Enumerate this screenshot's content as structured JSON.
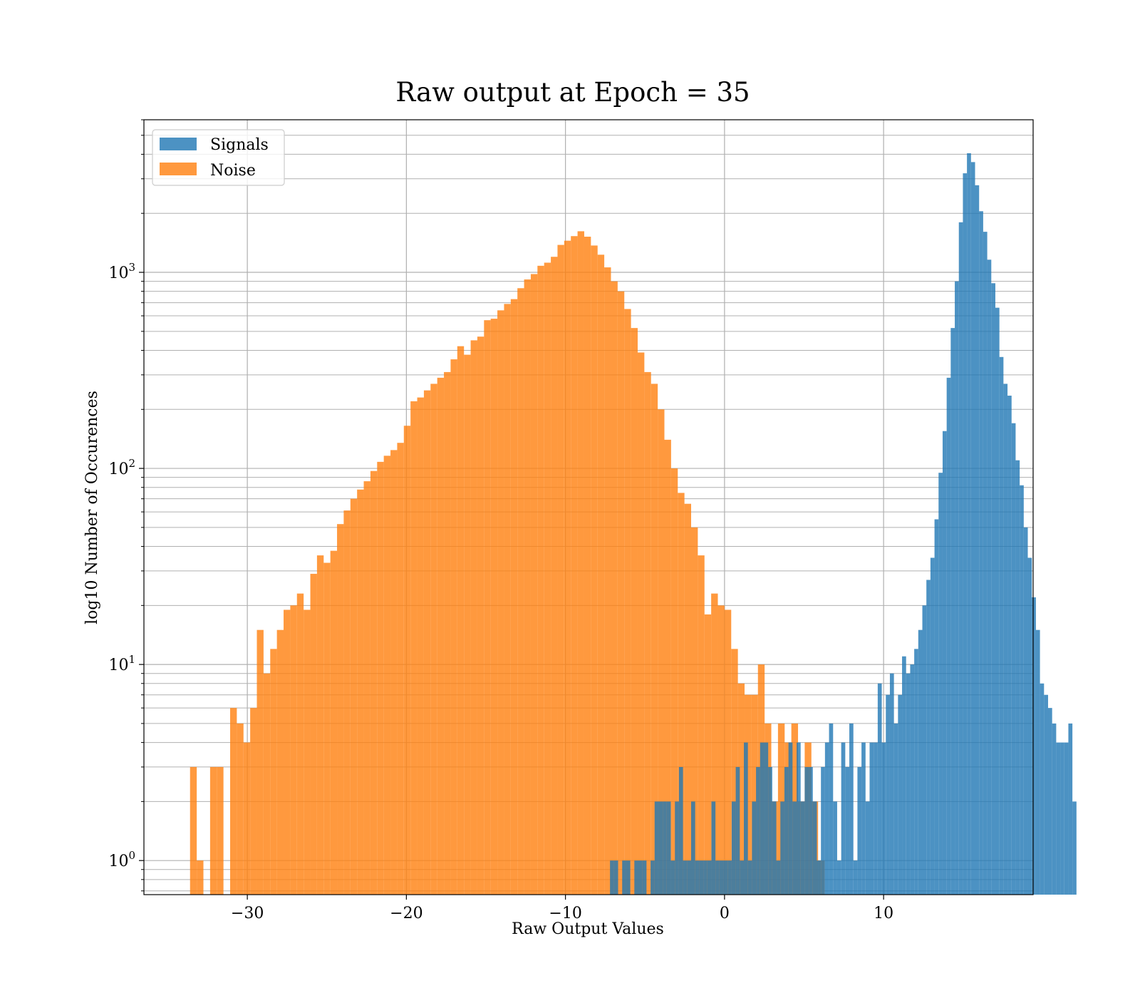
{
  "chart_data": {
    "type": "bar",
    "title": "Raw output at Epoch = 35",
    "xlabel": "Raw Output Values",
    "ylabel": "log10 Number of Occurences",
    "xlim": [
      -36.5,
      19.4
    ],
    "ylim": [
      0.67,
      6000
    ],
    "yscale": "log",
    "grid": "on (major and minor)",
    "legend_placement": "top-left",
    "x_ticks": [
      {
        "value": -30,
        "label": "−30"
      },
      {
        "value": -20,
        "label": "−20"
      },
      {
        "value": -10,
        "label": "−10"
      },
      {
        "value": 0,
        "label": "0"
      },
      {
        "value": 10,
        "label": "10"
      }
    ],
    "y_ticks": [
      {
        "value": 1,
        "base": "10",
        "exp": "0"
      },
      {
        "value": 10,
        "base": "10",
        "exp": "1"
      },
      {
        "value": 100,
        "base": "10",
        "exp": "2"
      },
      {
        "value": 1000,
        "base": "10",
        "exp": "3"
      }
    ],
    "series": [
      {
        "name": "Noise",
        "color": "#ff7f0e",
        "opacity": 0.8,
        "bin_start": -33.6,
        "bin_width": 0.42,
        "values": [
          3,
          1,
          0,
          3,
          3,
          0,
          6,
          5,
          4,
          6,
          15,
          9,
          12,
          15,
          19,
          20,
          23,
          19,
          29,
          36,
          33,
          38,
          52,
          61,
          70,
          78,
          86,
          97,
          108,
          116,
          124,
          135,
          165,
          220,
          230,
          250,
          270,
          290,
          310,
          360,
          420,
          380,
          450,
          470,
          570,
          580,
          640,
          690,
          730,
          830,
          920,
          980,
          1080,
          1120,
          1200,
          1380,
          1450,
          1530,
          1620,
          1520,
          1370,
          1230,
          1060,
          900,
          800,
          650,
          520,
          390,
          310,
          270,
          200,
          140,
          100,
          75,
          66,
          50,
          36,
          18,
          23,
          20,
          19,
          12,
          8,
          7,
          7,
          10,
          5,
          2,
          5,
          4,
          5,
          2,
          4,
          2,
          1
        ]
      },
      {
        "name": "Signals",
        "color": "#1f77b4",
        "opacity": 0.8,
        "bin_start": -7.2,
        "bin_width": 0.255,
        "values": [
          1,
          1,
          0,
          1,
          1,
          0,
          1,
          1,
          1,
          0,
          1,
          2,
          2,
          2,
          2,
          1,
          2,
          3,
          1,
          1,
          2,
          1,
          1,
          1,
          1,
          2,
          1,
          1,
          1,
          1,
          2,
          3,
          1,
          4,
          1,
          2,
          3,
          4,
          4,
          3,
          2,
          1,
          2,
          3,
          4,
          2,
          4,
          2,
          3,
          3,
          2,
          1,
          3,
          4,
          5,
          2,
          1,
          4,
          3,
          5,
          1,
          3,
          4,
          2,
          4,
          4,
          8,
          4,
          7,
          9,
          5,
          7,
          11,
          9,
          10,
          12,
          15,
          20,
          27,
          35,
          55,
          95,
          155,
          290,
          520,
          900,
          1800,
          3200,
          4050,
          3650,
          2780,
          2050,
          1610,
          1160,
          880,
          660,
          370,
          270,
          235,
          170,
          110,
          82,
          50,
          35,
          22,
          15,
          8,
          7,
          6,
          5,
          4,
          4,
          4,
          5,
          2
        ]
      }
    ]
  }
}
